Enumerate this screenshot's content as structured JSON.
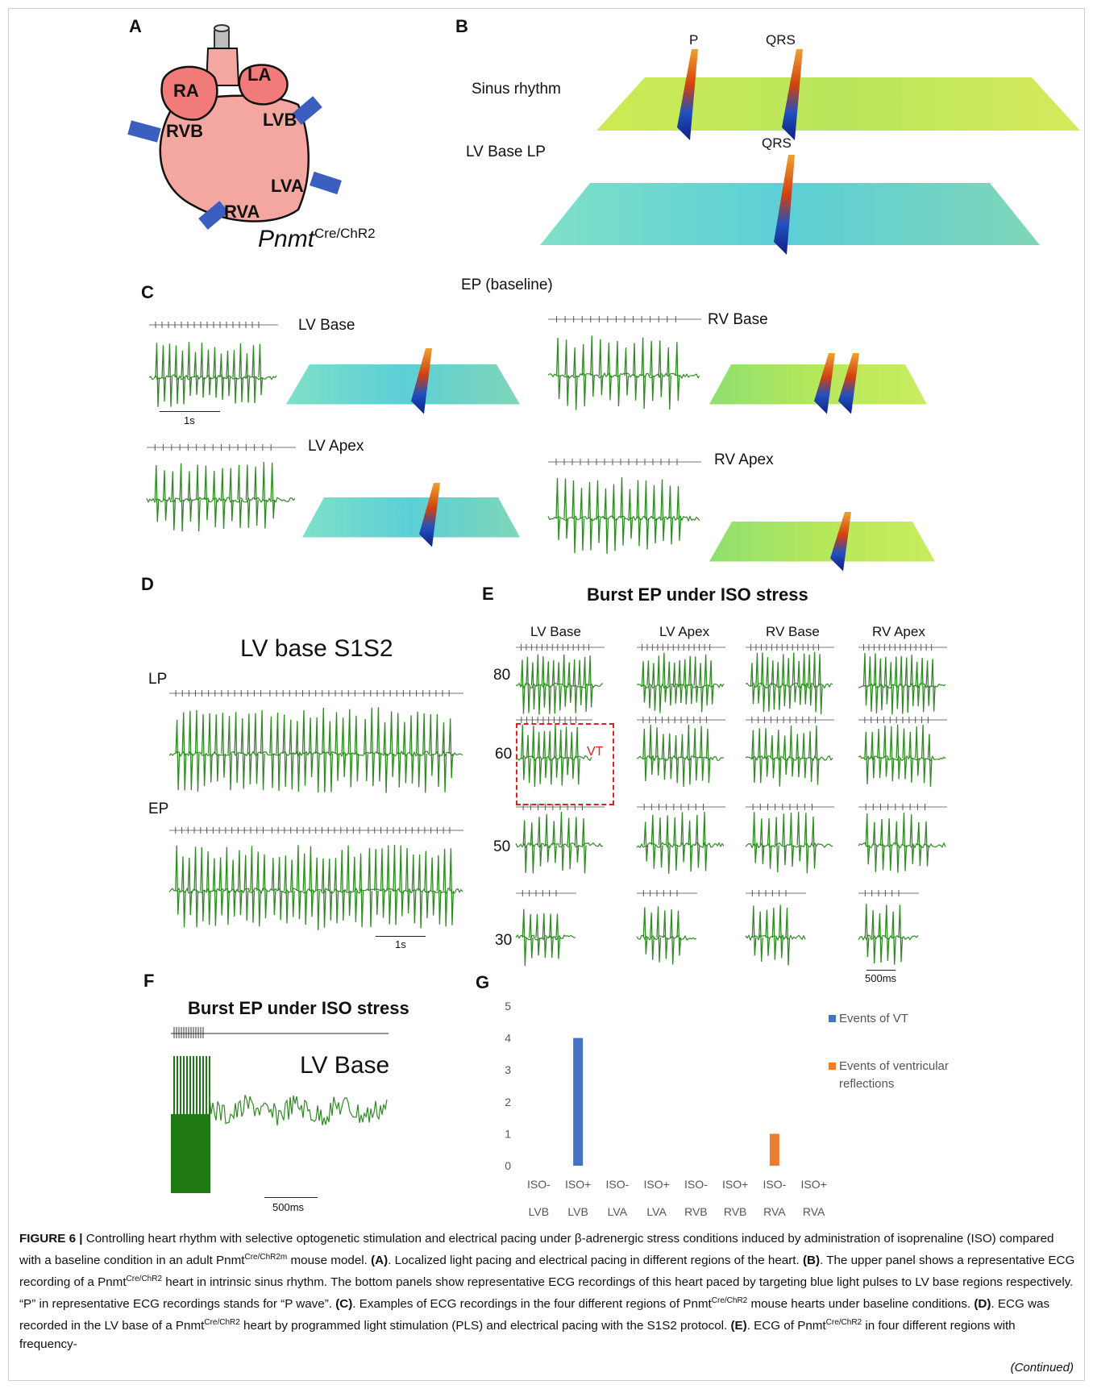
{
  "panels": {
    "A": {
      "letter": "A",
      "regions": [
        "RA",
        "LA",
        "RVB",
        "LVB",
        "LVA",
        "RVA"
      ],
      "model_main": "Pnmt",
      "model_sup": "Cre/ChR2",
      "colors": {
        "heart": "#f4a6a0",
        "atrium": "#f07b78",
        "electrode": "#3a5fbf"
      }
    },
    "B": {
      "letter": "B",
      "row1_label": "Sinus rhythm",
      "row2_label": "LV Base LP",
      "p_label": "P",
      "qrs_label_1": "QRS",
      "qrs_label_2": "QRS"
    },
    "C": {
      "letter": "C",
      "title": "EP (baseline)",
      "lv_base": "LV Base",
      "rv_base": "RV Base",
      "lv_apex": "LV Apex",
      "rv_apex": "RV Apex",
      "scale": "1s"
    },
    "D": {
      "letter": "D",
      "title": "LV base  S1S2",
      "lp": "LP",
      "ep": "EP",
      "scale": "1s"
    },
    "E": {
      "letter": "E",
      "title": "Burst EP under ISO stress",
      "columns": [
        "LV Base",
        "LV Apex",
        "RV Base",
        "RV Apex"
      ],
      "rows": [
        "80",
        "60",
        "50",
        "30"
      ],
      "vt": "VT",
      "scale": "500ms"
    },
    "F": {
      "letter": "F",
      "title": "Burst EP under ISO stress",
      "region": "LV Base",
      "scale": "500ms"
    },
    "G": {
      "letter": "G",
      "legend_vt": "Events of VT",
      "legend_refl_1": "Events of ventricular",
      "legend_refl_2": "reflections",
      "yticks": [
        "5",
        "4",
        "3",
        "2",
        "1",
        "0"
      ],
      "colors": {
        "vt": "#4472c4",
        "refl": "#ed7d31"
      }
    }
  },
  "chart_data": {
    "type": "bar",
    "categories": [
      "ISO- LVB",
      "ISO+ LVB",
      "ISO- LVA",
      "ISO+ LVA",
      "ISO- RVB",
      "ISO+ RVB",
      "ISO- RVA",
      "ISO+ RVA"
    ],
    "category_top": [
      "ISO-",
      "ISO+",
      "ISO-",
      "ISO+",
      "ISO-",
      "ISO+",
      "ISO-",
      "ISO+"
    ],
    "category_bottom": [
      "LVB",
      "LVB",
      "LVA",
      "LVA",
      "RVB",
      "RVB",
      "RVA",
      "RVA"
    ],
    "series": [
      {
        "name": "Events of VT",
        "values": [
          0,
          4,
          0,
          0,
          0,
          0,
          0,
          0
        ]
      },
      {
        "name": "Events of ventricular reflections",
        "values": [
          0,
          0,
          0,
          0,
          0,
          0,
          1,
          0
        ]
      }
    ],
    "ylim": [
      0,
      5
    ],
    "grid": false,
    "legend": "right"
  },
  "caption": {
    "fig_label": "FIGURE 6 |",
    "t1": " Controlling heart rhythm with selective optogenetic stimulation and electrical pacing under β-adrenergic stress conditions induced by administration of isoprenaline (ISO) compared with a baseline condition in an adult Pnmt",
    "sup1": "Cre/ChR2m",
    "t2": " mouse model. ",
    "bA": "(A)",
    "t3": ". Localized light pacing and electrical pacing in different regions of the heart. ",
    "bB": "(B)",
    "t4": ". The upper panel shows a representative ECG recording of a Pnmt",
    "sup2": "Cre/ChR2",
    "t5": " heart in intrinsic sinus rhythm. The bottom panels show representative ECG recordings of this heart paced by targeting blue light pulses to LV base regions respectively. “P” in representative ECG recordings stands for “P wave”. ",
    "bC": "(C)",
    "t6": ". Examples of ECG recordings in the four different regions of Pnmt",
    "sup3": "Cre/ChR2",
    "t7": " mouse hearts under baseline conditions. ",
    "bD": "(D)",
    "t8": ". ECG was recorded in the LV base of a Pnmt",
    "sup4": "Cre/ChR2",
    "t9": " heart by programmed light stimulation (PLS) and electrical pacing with the S1S2 protocol. ",
    "bE": "(E)",
    "t10": ". ECG of Pnmt",
    "sup5": "Cre/ChR2",
    "t11": " in four different regions with frequency-",
    "continued": "(Continued)"
  }
}
